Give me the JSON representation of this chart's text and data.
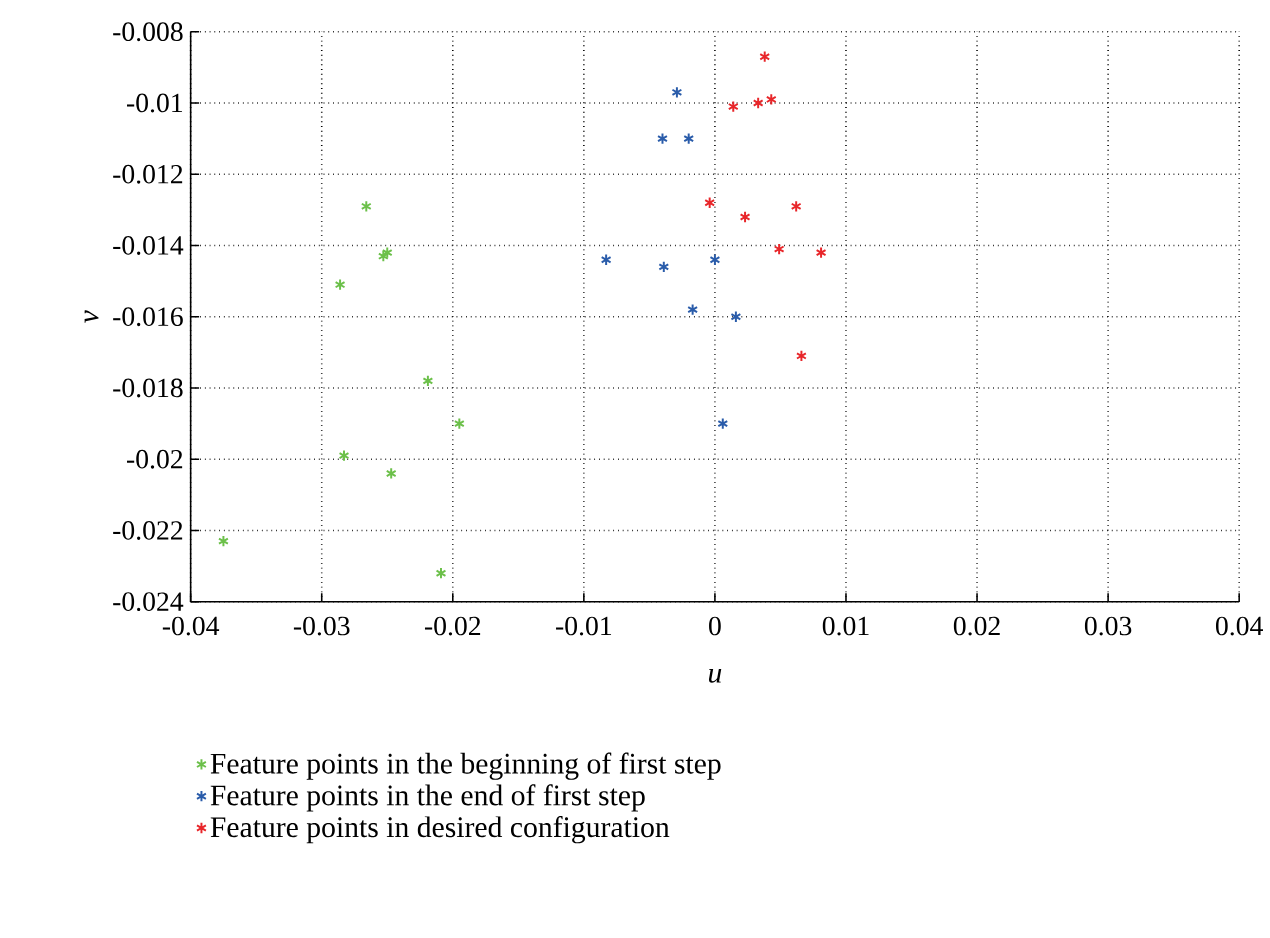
{
  "chart_data": {
    "type": "scatter",
    "xlabel": "u",
    "ylabel": "v",
    "xlim": [
      -0.04,
      0.04
    ],
    "xticks": [
      -0.04,
      -0.03,
      -0.02,
      -0.01,
      0,
      0.01,
      0.02,
      0.03,
      0.04
    ],
    "ylim": [
      -0.024,
      -0.008
    ],
    "yticks": [
      -0.024,
      -0.022,
      -0.02,
      -0.018,
      -0.016,
      -0.014,
      -0.012,
      -0.01,
      -0.008
    ],
    "grid": true,
    "legend": "bottom",
    "marker": "cross",
    "series": [
      {
        "name": "Feature points in the beginning of first step",
        "color": "#6cc04a",
        "x": [
          -0.0266,
          -0.025,
          -0.0253,
          -0.0286,
          -0.0219,
          -0.0195,
          -0.0283,
          -0.0247,
          -0.0375,
          -0.0209
        ],
        "values": [
          -0.0129,
          -0.0142,
          -0.0143,
          -0.0151,
          -0.0178,
          -0.019,
          -0.0199,
          -0.0204,
          -0.0223,
          -0.0232
        ]
      },
      {
        "name": "Feature points in the end of first step",
        "color": "#2a5caa",
        "x": [
          -0.0029,
          -0.004,
          -0.002,
          -0.0083,
          -0.0039,
          0.0,
          -0.0017,
          0.0016,
          0.0006
        ],
        "values": [
          -0.0097,
          -0.011,
          -0.011,
          -0.0144,
          -0.0146,
          -0.0144,
          -0.0158,
          -0.016,
          -0.019
        ]
      },
      {
        "name": "Feature points in desired configuration",
        "color": "#e8262a",
        "x": [
          0.0038,
          0.0014,
          0.0033,
          0.0043,
          -0.0004,
          0.0023,
          0.0062,
          0.0049,
          0.0081,
          0.0066
        ],
        "values": [
          -0.0087,
          -0.0101,
          -0.01,
          -0.0099,
          -0.0128,
          -0.0132,
          -0.0129,
          -0.0141,
          -0.0142,
          -0.0171
        ]
      }
    ]
  }
}
